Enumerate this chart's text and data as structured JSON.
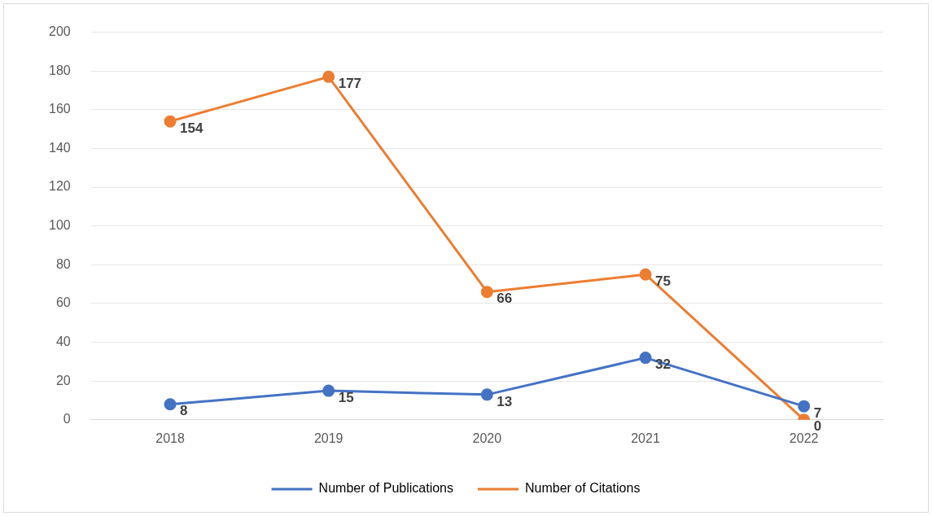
{
  "chart_data": {
    "type": "line",
    "categories": [
      "2018",
      "2019",
      "2020",
      "2021",
      "2022"
    ],
    "series": [
      {
        "name": "Number of Publications",
        "color": "#4472c4",
        "values": [
          8,
          15,
          13,
          32,
          7
        ]
      },
      {
        "name": "Number of Citations",
        "color": "#ed7d31",
        "values": [
          154,
          177,
          66,
          75,
          0
        ]
      }
    ],
    "ylim": [
      0,
      200
    ],
    "yticks": [
      0,
      20,
      40,
      60,
      80,
      100,
      120,
      140,
      160,
      180,
      200
    ],
    "grid": "y",
    "legend": "bottom",
    "marker": "circle",
    "line_style": "solid",
    "data_labels": true
  }
}
